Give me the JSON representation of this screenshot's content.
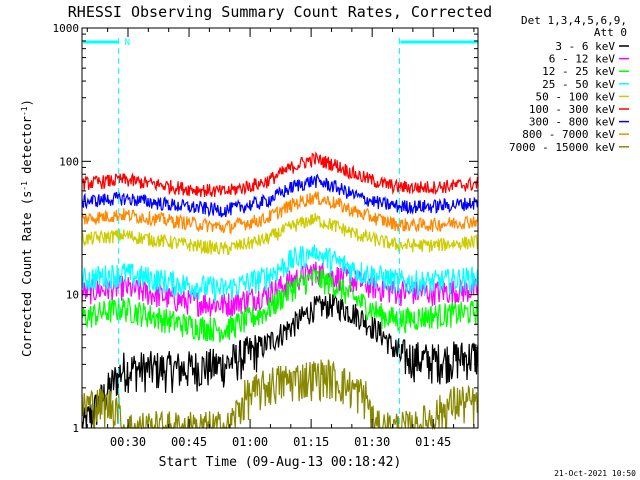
{
  "chart_data": {
    "type": "line",
    "title": "RHESSI Observing Summary Count Rates, Corrected",
    "ylabel_parts": [
      "Corrected Count Rate (s",
      "-1",
      " detector",
      "-1",
      ")"
    ],
    "xlabel": "Start Time (09-Aug-13 00:18:42)",
    "yscale": "log",
    "ylim": [
      1,
      1000
    ],
    "xlim_minutes": [
      0,
      97.3
    ],
    "y_ticks": [
      "1",
      "10",
      "100",
      "1000"
    ],
    "x_ticks": [
      {
        "label": "00:30",
        "minute": 11.3
      },
      {
        "label": "00:45",
        "minute": 26.3
      },
      {
        "label": "01:00",
        "minute": 41.3
      },
      {
        "label": "01:15",
        "minute": 56.3
      },
      {
        "label": "01:30",
        "minute": 71.3
      },
      {
        "label": "01:45",
        "minute": 86.3
      }
    ],
    "legend": {
      "header": [
        "Det 1,3,4,5,6,9,",
        "Att 0"
      ],
      "position": "right"
    },
    "timestamp": "21-Oct-2021 10:50",
    "night_flag": {
      "label": "N",
      "color": "#00ffff",
      "intervals_minutes": [
        [
          0,
          9
        ],
        [
          78,
          97.3
        ]
      ]
    },
    "series": [
      {
        "name": "3 - 6 keV",
        "color": "#000000",
        "x": [
          0,
          10,
          25,
          35,
          45,
          52,
          57,
          62,
          68,
          74,
          78,
          86,
          97.3
        ],
        "y": [
          1.0,
          2.8,
          2.8,
          3.0,
          4.2,
          6.0,
          8.0,
          8.5,
          7.0,
          5.0,
          3.5,
          3.2,
          3.5
        ]
      },
      {
        "name": "6 - 12 keV",
        "color": "#ff00ff",
        "x": [
          0,
          10,
          25,
          35,
          45,
          52,
          57,
          62,
          68,
          74,
          78,
          86,
          97.3
        ],
        "y": [
          10.5,
          11.5,
          9.0,
          8.5,
          10.0,
          13.0,
          15.0,
          14.0,
          12.5,
          11.0,
          10.5,
          10.5,
          11.0
        ]
      },
      {
        "name": "12 - 25 keV",
        "color": "#00ff00",
        "x": [
          0,
          10,
          25,
          35,
          45,
          52,
          57,
          62,
          68,
          74,
          78,
          86,
          97.3
        ],
        "y": [
          6.8,
          8.0,
          6.0,
          5.5,
          7.5,
          11.5,
          13.5,
          12.0,
          9.0,
          7.0,
          6.5,
          7.0,
          7.5
        ]
      },
      {
        "name": "25 - 50 keV",
        "color": "#00ffff",
        "x": [
          0,
          10,
          25,
          35,
          45,
          52,
          57,
          62,
          68,
          74,
          78,
          86,
          97.3
        ],
        "y": [
          13.0,
          14.5,
          12.0,
          11.0,
          13.5,
          18.5,
          21.0,
          18.0,
          15.0,
          13.5,
          12.5,
          12.5,
          13.5
        ]
      },
      {
        "name": "50 - 100 keV",
        "color": "#cccc00",
        "x": [
          0,
          10,
          25,
          35,
          45,
          52,
          57,
          62,
          68,
          74,
          78,
          86,
          97.3
        ],
        "y": [
          26.0,
          28.0,
          24.0,
          22.0,
          26.0,
          33.0,
          37.0,
          33.0,
          28.0,
          25.0,
          23.5,
          23.5,
          25.0
        ]
      },
      {
        "name": "100 - 300 keV",
        "color": "#ff0000",
        "x": [
          0,
          10,
          25,
          35,
          45,
          52,
          57,
          62,
          68,
          74,
          78,
          86,
          97.3
        ],
        "y": [
          68.0,
          73.0,
          63.0,
          59.0,
          70.0,
          92.0,
          105.0,
          95.0,
          78.0,
          68.0,
          64.0,
          64.0,
          68.0
        ]
      },
      {
        "name": "300 - 800 keV",
        "color": "#0000ff",
        "x": [
          0,
          10,
          25,
          35,
          45,
          52,
          57,
          62,
          68,
          74,
          78,
          86,
          97.3
        ],
        "y": [
          50.0,
          53.0,
          46.0,
          43.0,
          50.0,
          65.0,
          72.0,
          65.0,
          54.0,
          48.0,
          46.0,
          46.0,
          49.0
        ]
      },
      {
        "name": "800 - 7000 keV",
        "color": "#ff8800",
        "x": [
          0,
          10,
          25,
          35,
          45,
          52,
          57,
          62,
          68,
          74,
          78,
          86,
          97.3
        ],
        "y": [
          37.0,
          40.0,
          35.0,
          32.0,
          37.0,
          48.0,
          54.0,
          49.0,
          41.0,
          36.0,
          33.5,
          33.5,
          36.0
        ]
      },
      {
        "name": "7000 - 15000 keV",
        "color": "#888800",
        "x": [
          0,
          9,
          9.5,
          35,
          36,
          40,
          47,
          55,
          60,
          64,
          70,
          72,
          78,
          82,
          92,
          97.3
        ],
        "y": [
          1.5,
          1.5,
          1.0,
          1.0,
          1.0,
          1.7,
          2.2,
          2.4,
          2.5,
          2.2,
          1.7,
          1.0,
          1.0,
          1.0,
          1.6,
          1.5
        ]
      }
    ]
  }
}
